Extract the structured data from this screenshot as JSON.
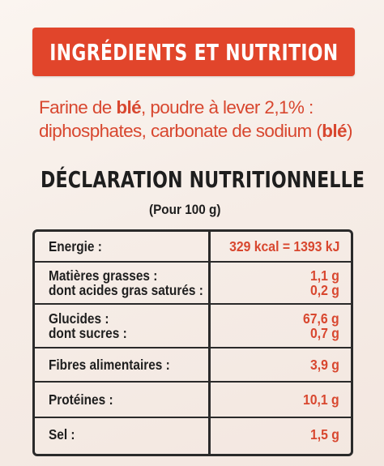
{
  "banner": {
    "title": "INGRÉDIENTS ET NUTRITION"
  },
  "ingredients": {
    "line1_part1": "Farine de ",
    "line1_bold": "blé",
    "line1_part2": ", poudre à lever 2,1% :",
    "line2_part1": "diphosphates, carbonate de sodium (",
    "line2_bold": "blé",
    "line2_part2": ")"
  },
  "declaration": {
    "title": "DÉCLARATION NUTRITIONNELLE",
    "subtitle": "(Pour 100 g)"
  },
  "nutrition": {
    "energie": {
      "label": "Energie :",
      "value": "329 kcal = 1393 kJ"
    },
    "matieres_grasses": {
      "label": "Matières grasses :",
      "value": "1,1 g"
    },
    "acides_gras": {
      "label": "dont acides gras saturés :",
      "value": "0,2 g"
    },
    "glucides": {
      "label": "Glucides :",
      "value": "67,6 g"
    },
    "sucres": {
      "label": "dont sucres :",
      "value": "0,7 g"
    },
    "fibres": {
      "label": "Fibres alimentaires :",
      "value": "3,9 g"
    },
    "proteines": {
      "label": "Protéines :",
      "value": "10,1 g"
    },
    "sel": {
      "label": "Sel :",
      "value": "1,5 g"
    }
  },
  "colors": {
    "banner_red": "#e1452b",
    "text_red": "#d8472f",
    "text_dark": "#1e1e1e"
  }
}
